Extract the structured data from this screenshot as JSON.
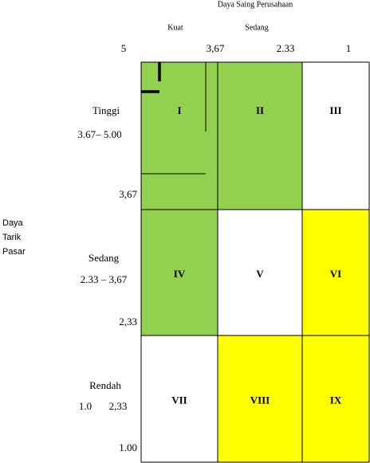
{
  "header": {
    "title": "Daya Saing Perusahaan",
    "columns": [
      "Kuat",
      "Sedang"
    ],
    "scale": [
      "5",
      "3,67",
      "2.33",
      "1"
    ]
  },
  "side": {
    "title": [
      "Daya",
      "Tarik",
      "Pasar"
    ],
    "rows": [
      {
        "name": "Tinggi",
        "range": "3.67– 5.00",
        "bound": "3,67"
      },
      {
        "name": "Sedang",
        "range": "2.33 – 3,67",
        "bound": "2,33"
      },
      {
        "name": "Rendah",
        "range": [
          "1.0",
          "2,33"
        ],
        "bound": "1.00"
      }
    ]
  },
  "cells": [
    {
      "label": "I",
      "color": "#92d050"
    },
    {
      "label": "II",
      "color": "#92d050"
    },
    {
      "label": "III",
      "color": "#ffffff"
    },
    {
      "label": "IV",
      "color": "#92d050"
    },
    {
      "label": "V",
      "color": "#ffffff"
    },
    {
      "label": "VI",
      "color": "#ffff00"
    },
    {
      "label": "VII",
      "color": "#ffffff"
    },
    {
      "label": "VIII",
      "color": "#ffff00"
    },
    {
      "label": "IX",
      "color": "#ffff00"
    }
  ]
}
